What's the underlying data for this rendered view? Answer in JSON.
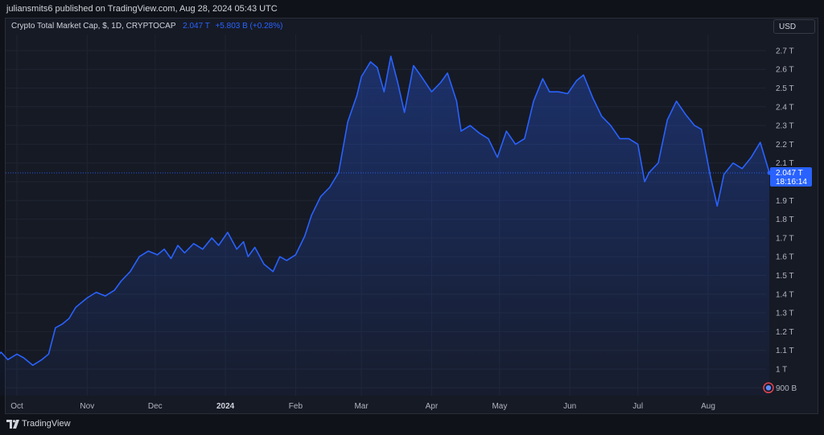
{
  "header": {
    "published": "juliansmits6 published on TradingView.com, Aug 28, 2024 05:43 UTC"
  },
  "legend": {
    "symbol": "Crypto Total Market Cap, $, 1D, CRYPTOCAP",
    "last_value": "2.047 T",
    "change": "+5.803 B (+0.28%)"
  },
  "currency_button": "USD",
  "price_badge": {
    "value": "2.047 T",
    "countdown": "18:16:14"
  },
  "footer": {
    "brand": "TradingView"
  },
  "colors": {
    "line": "#2962ff",
    "background": "#161a25",
    "grid": "#1f2431",
    "text": "#b2b5be"
  },
  "icons": {
    "scale_marker": "flag-icon",
    "logo": "tradingview-logo-icon"
  },
  "chart_data": {
    "type": "area",
    "title": "Crypto Total Market Cap, $, 1D, CRYPTOCAP",
    "ylabel": "",
    "xlabel": "",
    "ylim": [
      0.9,
      2.75
    ],
    "y_unit": "T",
    "y_ticks": [
      "2.7 T",
      "2.6 T",
      "2.5 T",
      "2.4 T",
      "2.3 T",
      "2.2 T",
      "2.1 T",
      "2.0 T",
      "1.9 T",
      "1.8 T",
      "1.7 T",
      "1.6 T",
      "1.5 T",
      "1.4 T",
      "1.3 T",
      "1.2 T",
      "1.1 T",
      "1 T",
      "900 B"
    ],
    "y_tick_values": [
      2.7,
      2.6,
      2.5,
      2.4,
      2.3,
      2.2,
      2.1,
      2.0,
      1.9,
      1.8,
      1.7,
      1.6,
      1.5,
      1.4,
      1.3,
      1.2,
      1.1,
      1.0,
      0.9
    ],
    "hidden_y_ticks": [
      "2.0 T"
    ],
    "x_ticks": [
      "Oct",
      "Nov",
      "Dec",
      "2024",
      "Feb",
      "Mar",
      "Apr",
      "May",
      "Jun",
      "Jul",
      "Aug"
    ],
    "x_tick_dates": [
      "2023-10-01",
      "2023-11-01",
      "2023-12-01",
      "2024-01-01",
      "2024-02-01",
      "2024-03-01",
      "2024-04-01",
      "2024-05-01",
      "2024-06-01",
      "2024-07-01",
      "2024-08-01"
    ],
    "bold_x_ticks": [
      "2024"
    ],
    "grid": true,
    "last_value": 2.047,
    "series": [
      {
        "x": [
          "2023-09-20",
          "2023-09-24",
          "2023-09-27",
          "2023-10-01",
          "2023-10-04",
          "2023-10-08",
          "2023-10-12",
          "2023-10-15",
          "2023-10-18",
          "2023-10-21",
          "2023-10-24",
          "2023-10-27",
          "2023-11-01",
          "2023-11-05",
          "2023-11-09",
          "2023-11-13",
          "2023-11-16",
          "2023-11-20",
          "2023-11-24",
          "2023-11-28",
          "2023-12-02",
          "2023-12-05",
          "2023-12-08",
          "2023-12-11",
          "2023-12-14",
          "2023-12-18",
          "2023-12-22",
          "2023-12-26",
          "2023-12-29",
          "2024-01-02",
          "2024-01-06",
          "2024-01-09",
          "2024-01-11",
          "2024-01-14",
          "2024-01-18",
          "2024-01-22",
          "2024-01-25",
          "2024-01-28",
          "2024-02-01",
          "2024-02-05",
          "2024-02-08",
          "2024-02-12",
          "2024-02-16",
          "2024-02-20",
          "2024-02-24",
          "2024-02-28",
          "2024-03-01",
          "2024-03-05",
          "2024-03-08",
          "2024-03-11",
          "2024-03-14",
          "2024-03-17",
          "2024-03-20",
          "2024-03-24",
          "2024-03-27",
          "2024-04-01",
          "2024-04-05",
          "2024-04-08",
          "2024-04-12",
          "2024-04-14",
          "2024-04-18",
          "2024-04-22",
          "2024-04-26",
          "2024-04-30",
          "2024-05-04",
          "2024-05-08",
          "2024-05-12",
          "2024-05-16",
          "2024-05-20",
          "2024-05-23",
          "2024-05-27",
          "2024-05-31",
          "2024-06-04",
          "2024-06-07",
          "2024-06-11",
          "2024-06-15",
          "2024-06-19",
          "2024-06-23",
          "2024-06-27",
          "2024-07-01",
          "2024-07-04",
          "2024-07-06",
          "2024-07-10",
          "2024-07-14",
          "2024-07-18",
          "2024-07-22",
          "2024-07-26",
          "2024-07-29",
          "2024-08-02",
          "2024-08-05",
          "2024-08-08",
          "2024-08-12",
          "2024-08-16",
          "2024-08-20",
          "2024-08-24",
          "2024-08-28"
        ],
        "values": [
          1.03,
          1.09,
          1.05,
          1.08,
          1.06,
          1.02,
          1.05,
          1.08,
          1.22,
          1.24,
          1.27,
          1.33,
          1.38,
          1.41,
          1.39,
          1.42,
          1.47,
          1.52,
          1.6,
          1.63,
          1.61,
          1.64,
          1.59,
          1.66,
          1.62,
          1.67,
          1.64,
          1.7,
          1.66,
          1.73,
          1.64,
          1.68,
          1.6,
          1.65,
          1.56,
          1.52,
          1.6,
          1.58,
          1.61,
          1.71,
          1.82,
          1.92,
          1.97,
          2.05,
          2.32,
          2.46,
          2.56,
          2.64,
          2.61,
          2.48,
          2.67,
          2.53,
          2.37,
          2.62,
          2.57,
          2.48,
          2.53,
          2.58,
          2.43,
          2.27,
          2.3,
          2.26,
          2.23,
          2.13,
          2.27,
          2.2,
          2.23,
          2.43,
          2.55,
          2.48,
          2.48,
          2.47,
          2.54,
          2.57,
          2.45,
          2.35,
          2.3,
          2.23,
          2.23,
          2.2,
          2.0,
          2.05,
          2.1,
          2.33,
          2.43,
          2.36,
          2.3,
          2.28,
          2.03,
          1.87,
          2.04,
          2.1,
          2.07,
          2.13,
          2.21,
          2.05
        ]
      }
    ]
  }
}
